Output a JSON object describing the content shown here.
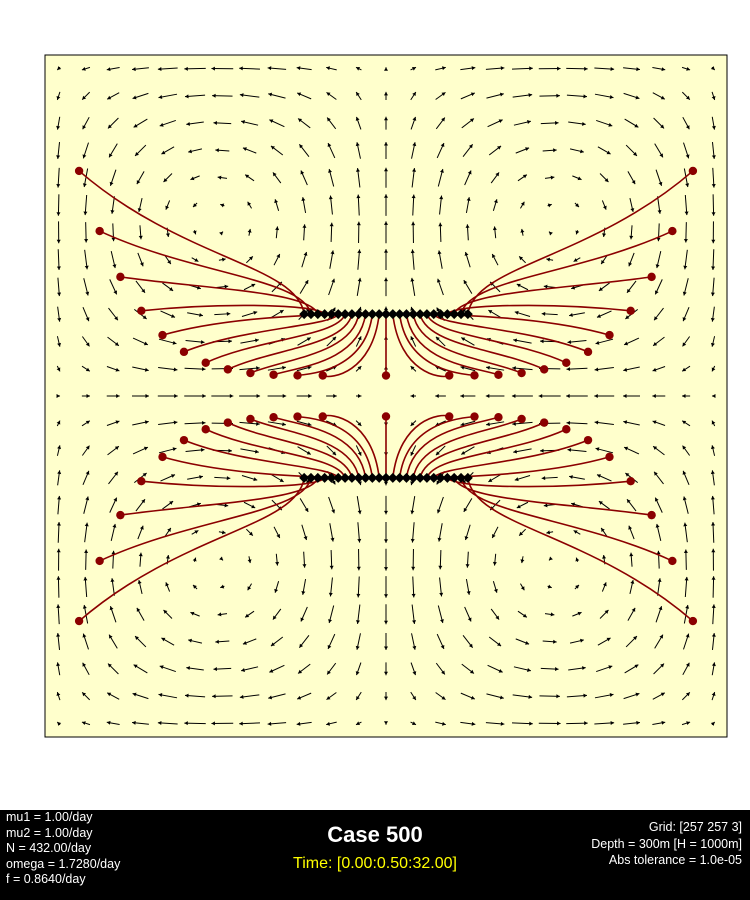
{
  "colors": {
    "background": "#ffffcc",
    "arrow": "#000000",
    "trajectory": "#8b0000",
    "start_marker": "#000000",
    "footer_bg": "#000000",
    "title": "#ffffff",
    "time": "#ffff00"
  },
  "footer": {
    "params_left": [
      "mu1 = 1.00/day",
      "mu2 = 1.00/day",
      "N = 432.00/day",
      "omega = 1.7280/day",
      "f = 0.8640/day"
    ],
    "title": "Case 500",
    "time_label": "Time: [0.00:0.50:32.00]",
    "params_right": [
      "Grid: [257 257 3]",
      "Depth = 300m  [H = 1000m]",
      "Abs tolerance = 1.0e-05"
    ]
  },
  "chart_data": {
    "type": "vector-field",
    "domain": {
      "x": [
        0,
        1
      ],
      "y": [
        0,
        1
      ]
    },
    "grid": false,
    "legend": "none",
    "field": {
      "description_units": "normalized domain",
      "nx": 25,
      "ny": 25,
      "cells": [
        {
          "center": [
            0.25,
            0.25
          ],
          "rotation": "counterclockwise"
        },
        {
          "center": [
            0.75,
            0.25
          ],
          "rotation": "clockwise"
        },
        {
          "center": [
            0.25,
            0.75
          ],
          "rotation": "clockwise"
        },
        {
          "center": [
            0.75,
            0.75
          ],
          "rotation": "counterclockwise"
        }
      ]
    },
    "particles": {
      "start_y": [
        0.38,
        0.62
      ],
      "start_x_range": [
        0.38,
        0.62
      ],
      "count_per_row": 25,
      "end_points": "dots"
    }
  }
}
